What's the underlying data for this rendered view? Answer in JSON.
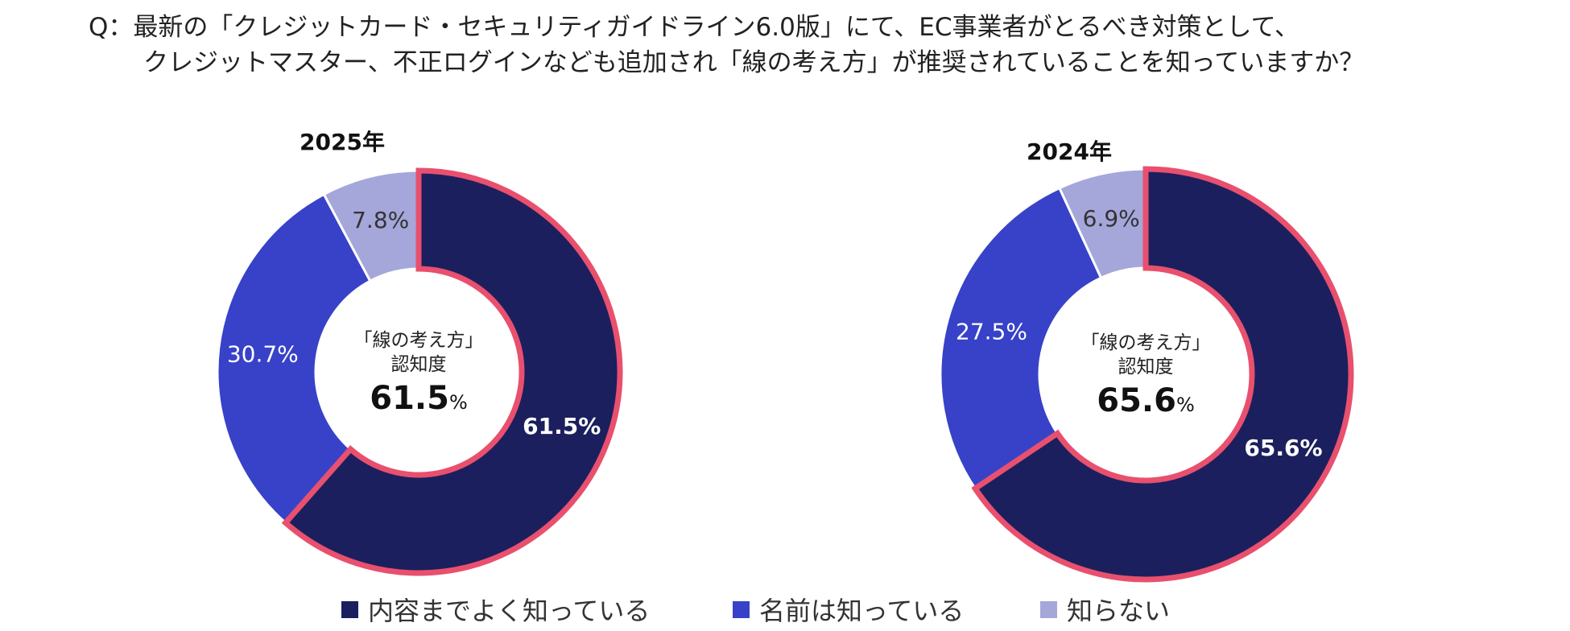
{
  "question": {
    "line1": "Q：最新の「クレジットカード・セキュリティガイドライン6.0版」にて、EC事業者がとるべき対策として、",
    "line2": "クレジットマスター、不正ログインなども追加され「線の考え方」が推奨されていることを知っていますか？"
  },
  "colors": {
    "know_well": "#1b1f5e",
    "know_name": "#3742c8",
    "dont_know": "#a5a6da",
    "highlight_border": "#e8506e",
    "label_light": "#ffffff",
    "label_dark": "#333333"
  },
  "chart_data": [
    {
      "type": "pie",
      "style": "donut",
      "title": "2025年",
      "categories": [
        "内容までよく知っている",
        "名前は知っている",
        "知らない"
      ],
      "values": [
        61.5,
        30.7,
        7.8
      ],
      "value_labels": [
        "61.5%",
        "30.7%",
        "7.8%"
      ],
      "center": {
        "line1": "「線の考え方」",
        "line2": "認知度",
        "value": "61.5",
        "unit": "%"
      },
      "highlighted_category": "内容までよく知っている"
    },
    {
      "type": "pie",
      "style": "donut",
      "title": "2024年",
      "categories": [
        "内容までよく知っている",
        "名前は知っている",
        "知らない"
      ],
      "values": [
        65.6,
        27.5,
        6.9
      ],
      "value_labels": [
        "65.6%",
        "27.5%",
        "6.9%"
      ],
      "center": {
        "line1": "「線の考え方」",
        "line2": "認知度",
        "value": "65.6",
        "unit": "%"
      },
      "highlighted_category": "内容までよく知っている"
    }
  ],
  "legend": [
    {
      "label": "内容までよく知っている",
      "color_key": "know_well"
    },
    {
      "label": "名前は知っている",
      "color_key": "know_name"
    },
    {
      "label": "知らない",
      "color_key": "dont_know"
    }
  ]
}
